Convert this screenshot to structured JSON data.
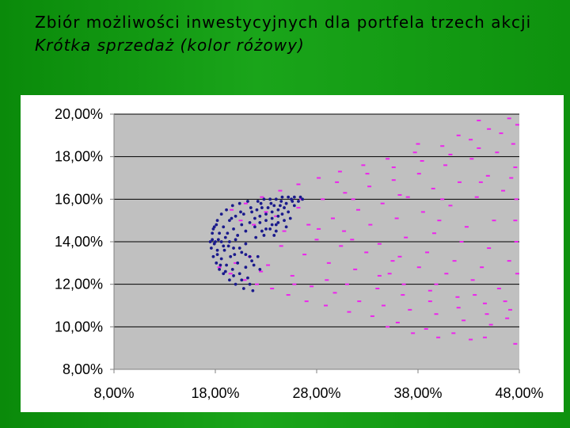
{
  "slide": {
    "title_line1": "Zbiór możliwości inwestycyjnych dla portfela trzech akcji",
    "title_line2": "Krótka sprzedaż (kolor różowy)"
  },
  "chart_data": {
    "type": "scatter",
    "title": "",
    "xlabel": "",
    "ylabel": "",
    "xlim": [
      0.08,
      0.48
    ],
    "ylim": [
      0.08,
      0.2
    ],
    "x_ticks": [
      "8,00%",
      "18,00%",
      "28,00%",
      "38,00%",
      "48,00%"
    ],
    "y_ticks": [
      "8,00%",
      "10,00%",
      "12,00%",
      "14,00%",
      "16,00%",
      "18,00%",
      "20,00%"
    ],
    "x_tick_values": [
      0.08,
      0.18,
      0.28,
      0.38,
      0.48
    ],
    "y_tick_values": [
      0.08,
      0.1,
      0.12,
      0.14,
      0.16,
      0.18,
      0.2
    ],
    "grid": "horizontal",
    "plot_background": "#c0c0c0",
    "series": [
      {
        "color": "#ee22ee",
        "marker": "dash",
        "points": [
          [
            0.184,
            0.128
          ],
          [
            0.195,
            0.125
          ],
          [
            0.209,
            0.122
          ],
          [
            0.221,
            0.12
          ],
          [
            0.236,
            0.118
          ],
          [
            0.252,
            0.115
          ],
          [
            0.27,
            0.112
          ],
          [
            0.289,
            0.11
          ],
          [
            0.312,
            0.107
          ],
          [
            0.335,
            0.105
          ],
          [
            0.36,
            0.102
          ],
          [
            0.388,
            0.099
          ],
          [
            0.415,
            0.097
          ],
          [
            0.446,
            0.095
          ],
          [
            0.476,
            0.092
          ],
          [
            0.196,
            0.155
          ],
          [
            0.21,
            0.158
          ],
          [
            0.226,
            0.161
          ],
          [
            0.244,
            0.164
          ],
          [
            0.262,
            0.167
          ],
          [
            0.282,
            0.17
          ],
          [
            0.303,
            0.173
          ],
          [
            0.326,
            0.176
          ],
          [
            0.35,
            0.179
          ],
          [
            0.377,
            0.182
          ],
          [
            0.404,
            0.185
          ],
          [
            0.432,
            0.188
          ],
          [
            0.462,
            0.191
          ],
          [
            0.478,
            0.195
          ],
          [
            0.47,
            0.198
          ],
          [
            0.214,
            0.133
          ],
          [
            0.232,
            0.129
          ],
          [
            0.256,
            0.124
          ],
          [
            0.275,
            0.119
          ],
          [
            0.298,
            0.116
          ],
          [
            0.322,
            0.112
          ],
          [
            0.346,
            0.11
          ],
          [
            0.372,
            0.108
          ],
          [
            0.398,
            0.106
          ],
          [
            0.425,
            0.103
          ],
          [
            0.452,
            0.101
          ],
          [
            0.468,
            0.104
          ],
          [
            0.218,
            0.148
          ],
          [
            0.24,
            0.152
          ],
          [
            0.262,
            0.156
          ],
          [
            0.286,
            0.16
          ],
          [
            0.308,
            0.163
          ],
          [
            0.332,
            0.166
          ],
          [
            0.356,
            0.169
          ],
          [
            0.381,
            0.172
          ],
          [
            0.407,
            0.176
          ],
          [
            0.433,
            0.179
          ],
          [
            0.458,
            0.182
          ],
          [
            0.474,
            0.186
          ],
          [
            0.245,
            0.138
          ],
          [
            0.268,
            0.134
          ],
          [
            0.292,
            0.13
          ],
          [
            0.318,
            0.127
          ],
          [
            0.342,
            0.124
          ],
          [
            0.366,
            0.12
          ],
          [
            0.392,
            0.117
          ],
          [
            0.419,
            0.114
          ],
          [
            0.446,
            0.111
          ],
          [
            0.471,
            0.108
          ],
          [
            0.248,
            0.145
          ],
          [
            0.272,
            0.148
          ],
          [
            0.296,
            0.151
          ],
          [
            0.321,
            0.155
          ],
          [
            0.345,
            0.158
          ],
          [
            0.37,
            0.161
          ],
          [
            0.395,
            0.165
          ],
          [
            0.421,
            0.168
          ],
          [
            0.449,
            0.171
          ],
          [
            0.476,
            0.175
          ],
          [
            0.28,
            0.141
          ],
          [
            0.304,
            0.138
          ],
          [
            0.329,
            0.135
          ],
          [
            0.355,
            0.131
          ],
          [
            0.381,
            0.128
          ],
          [
            0.408,
            0.125
          ],
          [
            0.434,
            0.122
          ],
          [
            0.46,
            0.118
          ],
          [
            0.282,
            0.146
          ],
          [
            0.307,
            0.145
          ],
          [
            0.333,
            0.148
          ],
          [
            0.359,
            0.151
          ],
          [
            0.385,
            0.154
          ],
          [
            0.412,
            0.157
          ],
          [
            0.438,
            0.161
          ],
          [
            0.464,
            0.164
          ],
          [
            0.315,
            0.141
          ],
          [
            0.342,
            0.139
          ],
          [
            0.368,
            0.142
          ],
          [
            0.396,
            0.144
          ],
          [
            0.423,
            0.14
          ],
          [
            0.45,
            0.137
          ],
          [
            0.477,
            0.14
          ],
          [
            0.362,
            0.133
          ],
          [
            0.389,
            0.135
          ],
          [
            0.416,
            0.131
          ],
          [
            0.443,
            0.128
          ],
          [
            0.47,
            0.131
          ],
          [
            0.401,
            0.15
          ],
          [
            0.428,
            0.147
          ],
          [
            0.455,
            0.15
          ],
          [
            0.34,
            0.118
          ],
          [
            0.365,
            0.115
          ],
          [
            0.392,
            0.112
          ],
          [
            0.42,
            0.109
          ],
          [
            0.448,
            0.106
          ],
          [
            0.33,
            0.172
          ],
          [
            0.356,
            0.175
          ],
          [
            0.384,
            0.178
          ],
          [
            0.412,
            0.181
          ],
          [
            0.44,
            0.184
          ],
          [
            0.29,
            0.122
          ],
          [
            0.3,
            0.168
          ],
          [
            0.35,
            0.1
          ],
          [
            0.375,
            0.097
          ],
          [
            0.4,
            0.095
          ],
          [
            0.432,
            0.094
          ],
          [
            0.38,
            0.186
          ],
          [
            0.42,
            0.19
          ],
          [
            0.45,
            0.193
          ],
          [
            0.44,
            0.197
          ],
          [
            0.2,
            0.13
          ],
          [
            0.205,
            0.15
          ],
          [
            0.225,
            0.126
          ],
          [
            0.23,
            0.154
          ],
          [
            0.258,
            0.12
          ],
          [
            0.265,
            0.16
          ],
          [
            0.31,
            0.12
          ],
          [
            0.316,
            0.16
          ],
          [
            0.352,
            0.125
          ],
          [
            0.362,
            0.162
          ],
          [
            0.398,
            0.12
          ],
          [
            0.404,
            0.16
          ],
          [
            0.436,
            0.115
          ],
          [
            0.442,
            0.168
          ],
          [
            0.466,
            0.112
          ],
          [
            0.472,
            0.17
          ],
          [
            0.476,
            0.15
          ],
          [
            0.478,
            0.125
          ],
          [
            0.477,
            0.16
          ]
        ]
      },
      {
        "color": "#1a1a8c",
        "marker": "dot",
        "points": [
          [
            0.175,
            0.14
          ],
          [
            0.176,
            0.137
          ],
          [
            0.177,
            0.144
          ],
          [
            0.178,
            0.133
          ],
          [
            0.179,
            0.147
          ],
          [
            0.181,
            0.13
          ],
          [
            0.182,
            0.15
          ],
          [
            0.184,
            0.127
          ],
          [
            0.186,
            0.153
          ],
          [
            0.188,
            0.125
          ],
          [
            0.191,
            0.155
          ],
          [
            0.194,
            0.122
          ],
          [
            0.197,
            0.157
          ],
          [
            0.2,
            0.12
          ],
          [
            0.204,
            0.158
          ],
          [
            0.208,
            0.118
          ],
          [
            0.212,
            0.159
          ],
          [
            0.217,
            0.117
          ],
          [
            0.222,
            0.159
          ],
          [
            0.228,
            0.16
          ],
          [
            0.234,
            0.16
          ],
          [
            0.24,
            0.16
          ],
          [
            0.246,
            0.161
          ],
          [
            0.252,
            0.161
          ],
          [
            0.258,
            0.161
          ],
          [
            0.264,
            0.161
          ],
          [
            0.18,
            0.14
          ],
          [
            0.182,
            0.136
          ],
          [
            0.184,
            0.144
          ],
          [
            0.186,
            0.132
          ],
          [
            0.188,
            0.147
          ],
          [
            0.191,
            0.129
          ],
          [
            0.194,
            0.15
          ],
          [
            0.197,
            0.127
          ],
          [
            0.2,
            0.152
          ],
          [
            0.204,
            0.125
          ],
          [
            0.208,
            0.153
          ],
          [
            0.212,
            0.123
          ],
          [
            0.216,
            0.154
          ],
          [
            0.221,
            0.155
          ],
          [
            0.226,
            0.156
          ],
          [
            0.232,
            0.156
          ],
          [
            0.238,
            0.157
          ],
          [
            0.244,
            0.157
          ],
          [
            0.25,
            0.158
          ],
          [
            0.256,
            0.159
          ],
          [
            0.186,
            0.14
          ],
          [
            0.189,
            0.136
          ],
          [
            0.192,
            0.144
          ],
          [
            0.195,
            0.133
          ],
          [
            0.198,
            0.146
          ],
          [
            0.202,
            0.13
          ],
          [
            0.206,
            0.148
          ],
          [
            0.21,
            0.128
          ],
          [
            0.214,
            0.149
          ],
          [
            0.219,
            0.151
          ],
          [
            0.224,
            0.152
          ],
          [
            0.23,
            0.153
          ],
          [
            0.236,
            0.154
          ],
          [
            0.242,
            0.155
          ],
          [
            0.248,
            0.156
          ],
          [
            0.194,
            0.14
          ],
          [
            0.198,
            0.137
          ],
          [
            0.202,
            0.143
          ],
          [
            0.206,
            0.135
          ],
          [
            0.21,
            0.145
          ],
          [
            0.214,
            0.133
          ],
          [
            0.219,
            0.147
          ],
          [
            0.224,
            0.149
          ],
          [
            0.23,
            0.15
          ],
          [
            0.236,
            0.151
          ],
          [
            0.242,
            0.152
          ],
          [
            0.218,
            0.129
          ],
          [
            0.224,
            0.127
          ],
          [
            0.23,
            0.146
          ],
          [
            0.236,
            0.148
          ],
          [
            0.242,
            0.149
          ],
          [
            0.248,
            0.15
          ],
          [
            0.254,
            0.151
          ],
          [
            0.2,
            0.141
          ],
          [
            0.21,
            0.139
          ],
          [
            0.22,
            0.142
          ],
          [
            0.228,
            0.143
          ],
          [
            0.24,
            0.145
          ],
          [
            0.25,
            0.147
          ],
          [
            0.183,
            0.141
          ],
          [
            0.179,
            0.139
          ],
          [
            0.177,
            0.141
          ],
          [
            0.19,
            0.142
          ],
          [
            0.196,
            0.151
          ],
          [
            0.205,
            0.154
          ],
          [
            0.215,
            0.156
          ],
          [
            0.225,
            0.158
          ],
          [
            0.235,
            0.158
          ],
          [
            0.245,
            0.159
          ],
          [
            0.255,
            0.16
          ],
          [
            0.185,
            0.129
          ],
          [
            0.19,
            0.126
          ],
          [
            0.198,
            0.124
          ],
          [
            0.206,
            0.122
          ],
          [
            0.214,
            0.12
          ],
          [
            0.262,
            0.159
          ],
          [
            0.266,
            0.16
          ],
          [
            0.258,
            0.157
          ],
          [
            0.252,
            0.154
          ],
          [
            0.246,
            0.153
          ],
          [
            0.24,
            0.148
          ],
          [
            0.234,
            0.146
          ],
          [
            0.226,
            0.145
          ],
          [
            0.222,
            0.133
          ],
          [
            0.216,
            0.131
          ],
          [
            0.21,
            0.134
          ],
          [
            0.204,
            0.137
          ],
          [
            0.199,
            0.134
          ],
          [
            0.193,
            0.138
          ],
          [
            0.188,
            0.138
          ],
          [
            0.182,
            0.134
          ],
          [
            0.178,
            0.146
          ],
          [
            0.181,
            0.148
          ],
          [
            0.238,
            0.143
          ]
        ]
      }
    ]
  }
}
